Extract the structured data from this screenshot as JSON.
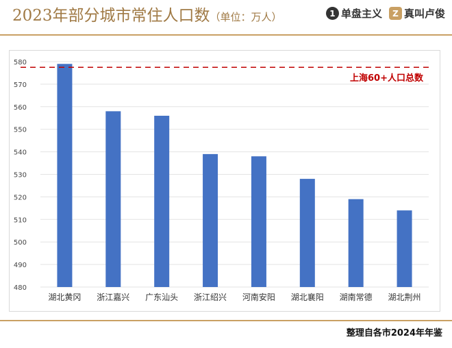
{
  "header": {
    "title": "2023年部分城市常住人口数",
    "unit": "（单位：万人）",
    "logos": [
      {
        "mark": "1",
        "text": "单盘主义"
      },
      {
        "mark": "Z",
        "text": "真叫卢俊"
      }
    ]
  },
  "source": "整理自各市2024年年鉴",
  "colors": {
    "bar": "#4472c4",
    "reference": "#c00000",
    "title": "#a07a45",
    "rule": "#c9a063"
  },
  "chart_data": {
    "type": "bar",
    "categories": [
      "湖北黄冈",
      "浙江嘉兴",
      "广东汕头",
      "浙江绍兴",
      "河南安阳",
      "湖北襄阳",
      "湖南常德",
      "湖北荆州"
    ],
    "values": [
      579,
      558,
      556,
      539,
      538,
      528,
      519,
      514
    ],
    "ylim": [
      480,
      580
    ],
    "yticks": [
      480,
      490,
      500,
      510,
      520,
      530,
      540,
      550,
      560,
      570,
      580
    ],
    "grid": true,
    "reference_line": {
      "value": 577.5,
      "label": "上海60+人口总数"
    }
  }
}
